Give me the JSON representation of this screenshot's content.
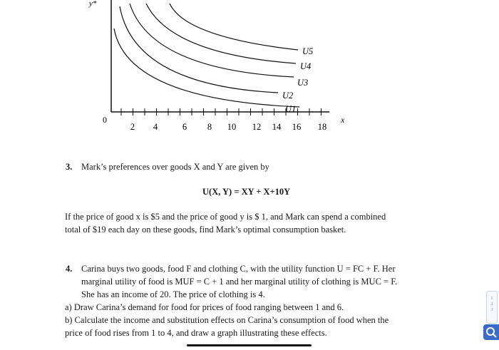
{
  "graph": {
    "y_axis_label": "y*",
    "x_axis_label": "x",
    "origin_label": "0",
    "x_ticks": [
      "2",
      "4",
      "6",
      "8",
      "10",
      "12",
      "14",
      "16",
      "18"
    ],
    "curve_labels": [
      "U5",
      "U4",
      "U3",
      "U2",
      "U1"
    ]
  },
  "q3": {
    "number": "3.",
    "text": "Mark’s preferences over goods X and Y are given by",
    "formula": "U(X, Y) = XY + X+10Y",
    "para_line1": "If the price of good x is $5 and the price of good y is $ 1, and Mark can spend a combined",
    "para_line2": "total of $19 each day on these goods, find Mark’s optimal consumption basket."
  },
  "q4": {
    "number": "4.",
    "line1": "Carina buys two goods, food F and clothing C, with the utility function U = FC + F. Her",
    "line2": "marginal utility of food is MUF = C + 1 and her marginal utility of clothing is MUC = F.",
    "line3": "She has an income of 20. The price of clothing is 4.",
    "part_a": "a) Draw Carina’s demand for food for prices of food ranging between 1 and 6.",
    "part_b1": "b) Calculate the income and substitution effects on Carina’s consumption of food when the",
    "part_b2": "price of food rises from 1 to 4, and draw a graph illustrating these effects."
  },
  "sidebar_widget": {
    "glyphs": [
      "1",
      "2",
      "3"
    ]
  },
  "colors": {
    "accent": "#3a6bc6",
    "text": "#1a1a1a"
  }
}
